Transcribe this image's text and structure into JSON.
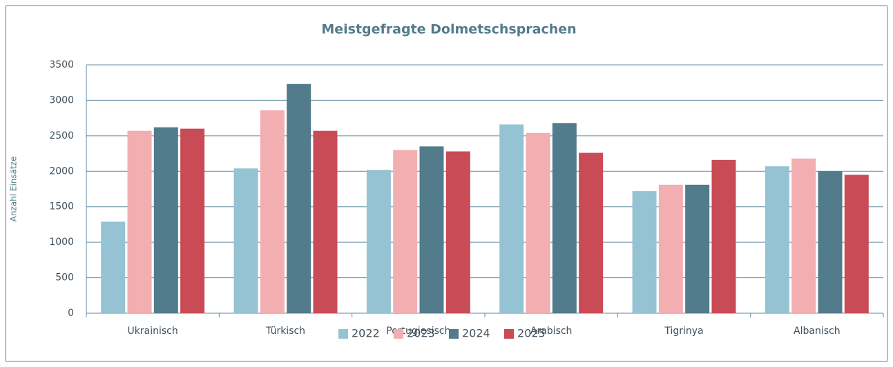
{
  "chart_data": {
    "type": "bar",
    "title": "Meistgefragte Dolmetschsprachen",
    "y_label": "Anzahl Einsätze",
    "categories": [
      "Ukrainisch",
      "Türkisch",
      "Portugiesisch",
      "Arabisch",
      "Tigrinya",
      "Albanisch"
    ],
    "series": [
      {
        "name": "2022",
        "color": "#96c3d3",
        "values": [
          1290,
          2040,
          2020,
          2660,
          1720,
          2070
        ]
      },
      {
        "name": "2023",
        "color": "#f2aeb1",
        "values": [
          2570,
          2860,
          2300,
          2540,
          1810,
          2180
        ]
      },
      {
        "name": "2024",
        "color": "#527b8c",
        "values": [
          2620,
          3230,
          2350,
          2680,
          1810,
          2000
        ]
      },
      {
        "name": "2025",
        "color": "#c84b56",
        "values": [
          2600,
          2570,
          2280,
          2260,
          2160,
          1950
        ]
      }
    ],
    "ylim": [
      0,
      3500
    ],
    "yticks": [
      0,
      500,
      1000,
      1500,
      2000,
      2500,
      3000,
      3500
    ],
    "grid": true,
    "legend": "bottom"
  }
}
